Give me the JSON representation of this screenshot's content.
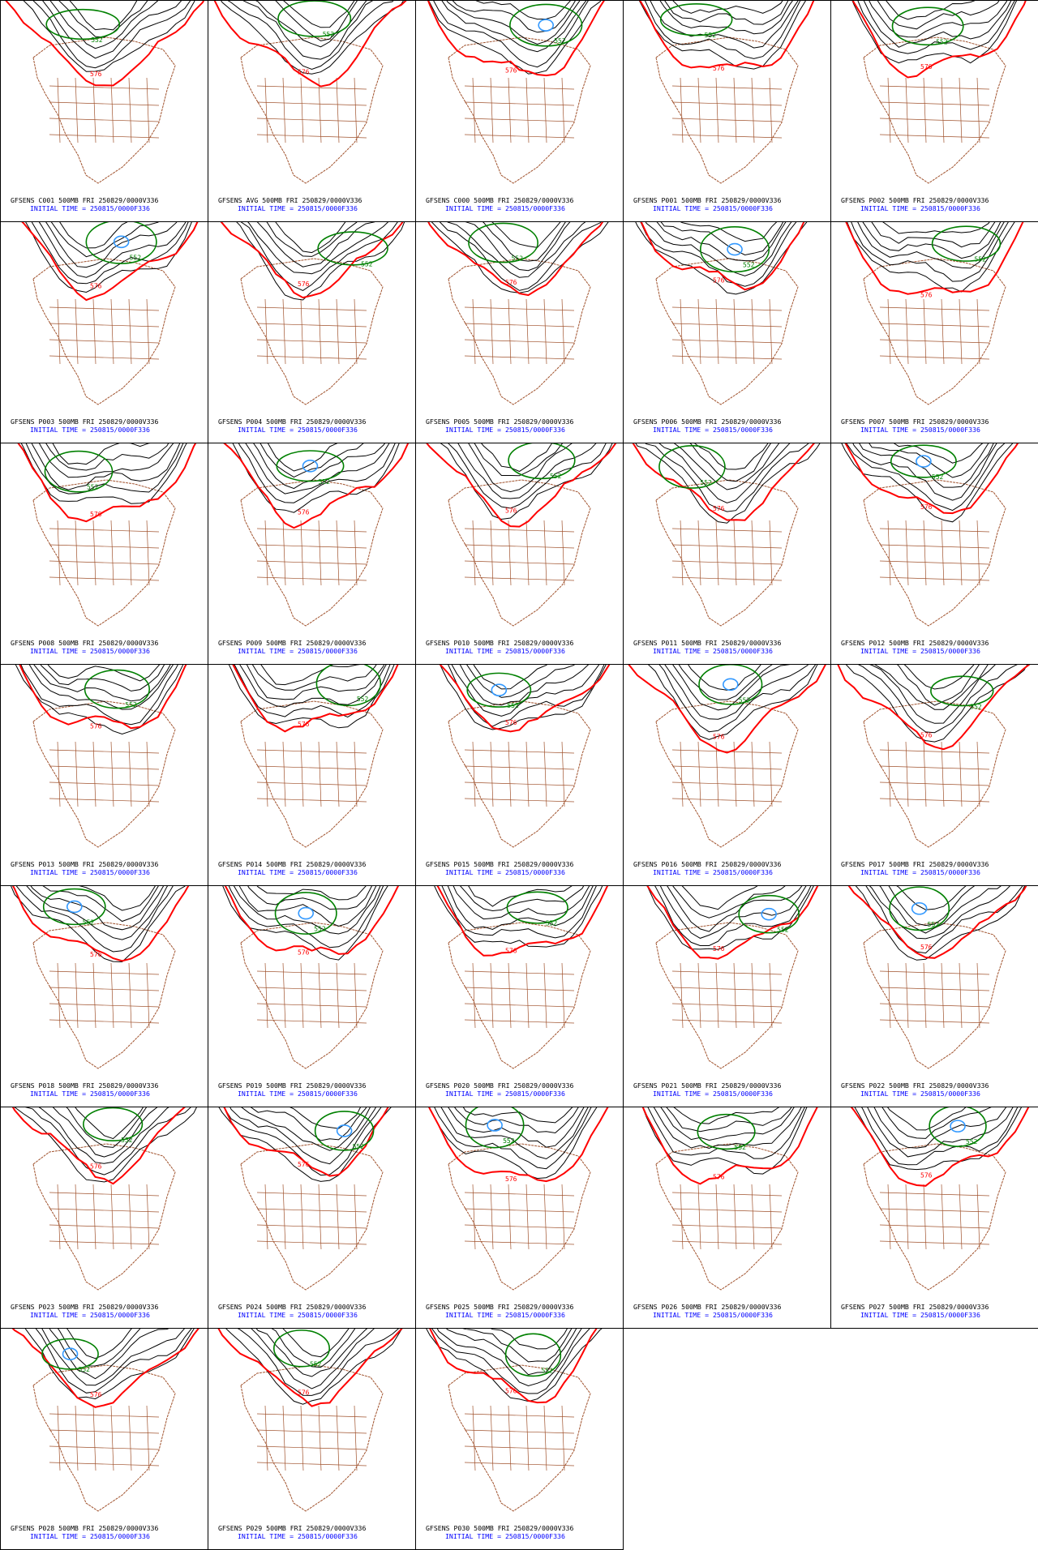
{
  "ensemble": {
    "contour_labels": {
      "green": "552",
      "red": "576"
    },
    "colors": {
      "contour_black": "#000000",
      "contour_red": "#ff0000",
      "contour_green": "#008000",
      "contour_blue": "#3399ff",
      "map_lines": "#a0522d",
      "title_text": "#000000",
      "init_text": "#0000ff"
    },
    "panels": [
      {
        "title": "GFSENS C001 500MB FRI 250829/0000V336",
        "init": "INITIAL TIME = 250815/0000F336"
      },
      {
        "title": "GFSENS AVG 500MB FRI 250829/0000V336",
        "init": "INITIAL TIME = 250815/0000F336"
      },
      {
        "title": "GFSENS C000 500MB FRI 250829/0000V336",
        "init": "INITIAL TIME = 250815/0000F336"
      },
      {
        "title": "GFSENS P001 500MB FRI 250829/0000V336",
        "init": "INITIAL TIME = 250815/0000F336"
      },
      {
        "title": "GFSENS P002 500MB FRI 250829/0000V336",
        "init": "INITIAL TIME = 250815/0000F336"
      },
      {
        "title": "GFSENS P003 500MB FRI 250829/0000V336",
        "init": "INITIAL TIME = 250815/0000F336"
      },
      {
        "title": "GFSENS P004 500MB FRI 250829/0000V336",
        "init": "INITIAL TIME = 250815/0000F336"
      },
      {
        "title": "GFSENS P005 500MB FRI 250829/0000V336",
        "init": "INITIAL TIME = 250815/0000F336"
      },
      {
        "title": "GFSENS P006 500MB FRI 250829/0000V336",
        "init": "INITIAL TIME = 250815/0000F336"
      },
      {
        "title": "GFSENS P007 500MB FRI 250829/0000V336",
        "init": "INITIAL TIME = 250815/0000F336"
      },
      {
        "title": "GFSENS P008 500MB FRI 250829/0000V336",
        "init": "INITIAL TIME = 250815/0000F336"
      },
      {
        "title": "GFSENS P009 500MB FRI 250829/0000V336",
        "init": "INITIAL TIME = 250815/0000F336"
      },
      {
        "title": "GFSENS P010 500MB FRI 250829/0000V336",
        "init": "INITIAL TIME = 250815/0000F336"
      },
      {
        "title": "GFSENS P011 500MB FRI 250829/0000V336",
        "init": "INITIAL TIME = 250815/0000F336"
      },
      {
        "title": "GFSENS P012 500MB FRI 250829/0000V336",
        "init": "INITIAL TIME = 250815/0000F336"
      },
      {
        "title": "GFSENS P013 500MB FRI 250829/0000V336",
        "init": "INITIAL TIME = 250815/0000F336"
      },
      {
        "title": "GFSENS P014 500MB FRI 250829/0000V336",
        "init": "INITIAL TIME = 250815/0000F336"
      },
      {
        "title": "GFSENS P015 500MB FRI 250829/0000V336",
        "init": "INITIAL TIME = 250815/0000F336"
      },
      {
        "title": "GFSENS P016 500MB FRI 250829/0000V336",
        "init": "INITIAL TIME = 250815/0000F336"
      },
      {
        "title": "GFSENS P017 500MB FRI 250829/0000V336",
        "init": "INITIAL TIME = 250815/0000F336"
      },
      {
        "title": "GFSENS P018 500MB FRI 250829/0000V336",
        "init": "INITIAL TIME = 250815/0000F336"
      },
      {
        "title": "GFSENS P019 500MB FRI 250829/0000V336",
        "init": "INITIAL TIME = 250815/0000F336"
      },
      {
        "title": "GFSENS P020 500MB FRI 250829/0000V336",
        "init": "INITIAL TIME = 250815/0000F336"
      },
      {
        "title": "GFSENS P021 500MB FRI 250829/0000V336",
        "init": "INITIAL TIME = 250815/0000F336"
      },
      {
        "title": "GFSENS P022 500MB FRI 250829/0000V336",
        "init": "INITIAL TIME = 250815/0000F336"
      },
      {
        "title": "GFSENS P023 500MB FRI 250829/0000V336",
        "init": "INITIAL TIME = 250815/0000F336"
      },
      {
        "title": "GFSENS P024 500MB FRI 250829/0000V336",
        "init": "INITIAL TIME = 250815/0000F336"
      },
      {
        "title": "GFSENS P025 500MB FRI 250829/0000V336",
        "init": "INITIAL TIME = 250815/0000F336"
      },
      {
        "title": "GFSENS P026 500MB FRI 250829/0000V336",
        "init": "INITIAL TIME = 250815/0000F336"
      },
      {
        "title": "GFSENS P027 500MB FRI 250829/0000V336",
        "init": "INITIAL TIME = 250815/0000F336"
      },
      {
        "title": "GFSENS P028 500MB FRI 250829/0000V336",
        "init": "INITIAL TIME = 250815/0000F336"
      },
      {
        "title": "GFSENS P029 500MB FRI 250829/0000V336",
        "init": "INITIAL TIME = 250815/0000F336"
      },
      {
        "title": "GFSENS P030 500MB FRI 250829/0000V336",
        "init": "INITIAL TIME = 250815/0000F336"
      }
    ]
  }
}
